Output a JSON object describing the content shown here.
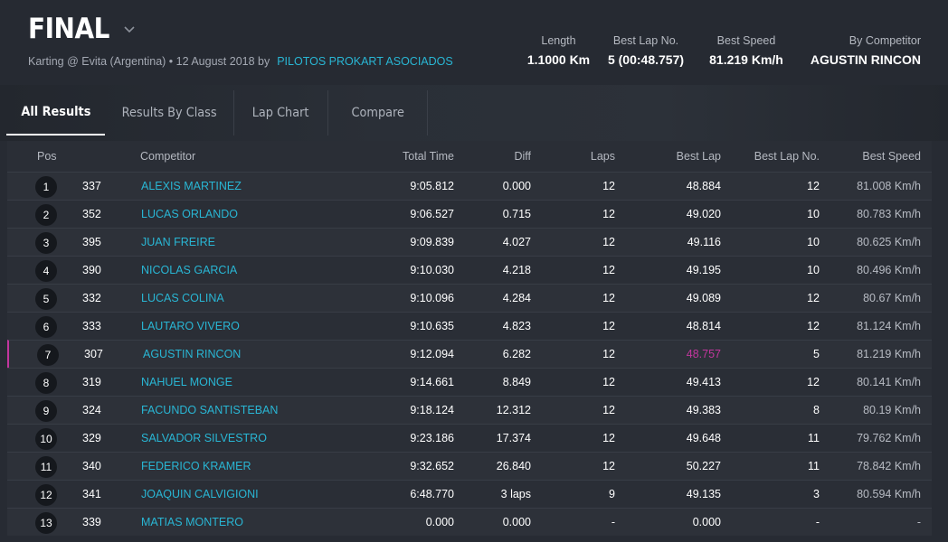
{
  "event": {
    "title": "FINAL",
    "subtitle": "Karting @ Evita (Argentina) • 12 August 2018 by",
    "organizer": "PILOTOS PROKART ASOCIADOS"
  },
  "stats": [
    {
      "label": "Length",
      "value": "1.1000 Km"
    },
    {
      "label": "Best Lap No.",
      "value": "5 (00:48.757)"
    },
    {
      "label": "Best Speed",
      "value": "81.219 Km/h"
    },
    {
      "label": "By Competitor",
      "value": "AGUSTIN RINCON"
    }
  ],
  "tabs": [
    {
      "label": "All Results",
      "active": true
    },
    {
      "label": "Results By Class",
      "active": false
    },
    {
      "label": "Lap Chart",
      "active": false
    },
    {
      "label": "Compare",
      "active": false
    }
  ],
  "columns": {
    "pos": "Pos",
    "competitor": "Competitor",
    "total_time": "Total Time",
    "diff": "Diff",
    "laps": "Laps",
    "best_lap": "Best Lap",
    "best_lap_no": "Best Lap No.",
    "best_speed": "Best Speed"
  },
  "results": [
    {
      "pos": "1",
      "num": "337",
      "name": "ALEXIS MARTINEZ",
      "total": "9:05.812",
      "diff": "0.000",
      "laps": "12",
      "best": "48.884",
      "bestno": "12",
      "speed": "81.008 Km/h"
    },
    {
      "pos": "2",
      "num": "352",
      "name": "LUCAS ORLANDO",
      "total": "9:06.527",
      "diff": "0.715",
      "laps": "12",
      "best": "49.020",
      "bestno": "10",
      "speed": "80.783 Km/h"
    },
    {
      "pos": "3",
      "num": "395",
      "name": "JUAN FREIRE",
      "total": "9:09.839",
      "diff": "4.027",
      "laps": "12",
      "best": "49.116",
      "bestno": "10",
      "speed": "80.625 Km/h"
    },
    {
      "pos": "4",
      "num": "390",
      "name": "NICOLAS GARCIA",
      "total": "9:10.030",
      "diff": "4.218",
      "laps": "12",
      "best": "49.195",
      "bestno": "10",
      "speed": "80.496 Km/h"
    },
    {
      "pos": "5",
      "num": "332",
      "name": "LUCAS COLINA",
      "total": "9:10.096",
      "diff": "4.284",
      "laps": "12",
      "best": "49.089",
      "bestno": "12",
      "speed": "80.67 Km/h"
    },
    {
      "pos": "6",
      "num": "333",
      "name": "LAUTARO VIVERO",
      "total": "9:10.635",
      "diff": "4.823",
      "laps": "12",
      "best": "48.814",
      "bestno": "12",
      "speed": "81.124 Km/h"
    },
    {
      "pos": "7",
      "num": "307",
      "name": "AGUSTIN RINCON",
      "total": "9:12.094",
      "diff": "6.282",
      "laps": "12",
      "best": "48.757",
      "bestno": "5",
      "speed": "81.219 Km/h"
    },
    {
      "pos": "8",
      "num": "319",
      "name": "NAHUEL MONGE",
      "total": "9:14.661",
      "diff": "8.849",
      "laps": "12",
      "best": "49.413",
      "bestno": "12",
      "speed": "80.141 Km/h"
    },
    {
      "pos": "9",
      "num": "324",
      "name": "FACUNDO SANTISTEBAN",
      "total": "9:18.124",
      "diff": "12.312",
      "laps": "12",
      "best": "49.383",
      "bestno": "8",
      "speed": "80.19 Km/h"
    },
    {
      "pos": "10",
      "num": "329",
      "name": "SALVADOR SILVESTRO",
      "total": "9:23.186",
      "diff": "17.374",
      "laps": "12",
      "best": "49.648",
      "bestno": "11",
      "speed": "79.762 Km/h"
    },
    {
      "pos": "11",
      "num": "340",
      "name": "FEDERICO KRAMER",
      "total": "9:32.652",
      "diff": "26.840",
      "laps": "12",
      "best": "50.227",
      "bestno": "11",
      "speed": "78.842 Km/h"
    },
    {
      "pos": "12",
      "num": "341",
      "name": "JOAQUIN CALVIGIONI",
      "total": "6:48.770",
      "diff": "3 laps",
      "laps": "9",
      "best": "49.135",
      "bestno": "3",
      "speed": "80.594 Km/h"
    },
    {
      "pos": "13",
      "num": "339",
      "name": "MATIAS MONTERO",
      "total": "0.000",
      "diff": "0.000",
      "laps": "-",
      "best": "0.000",
      "bestno": "-",
      "speed": "-"
    }
  ],
  "colors": {
    "accent": "#29b6d4",
    "best_lap_highlight": "#c2369e"
  }
}
